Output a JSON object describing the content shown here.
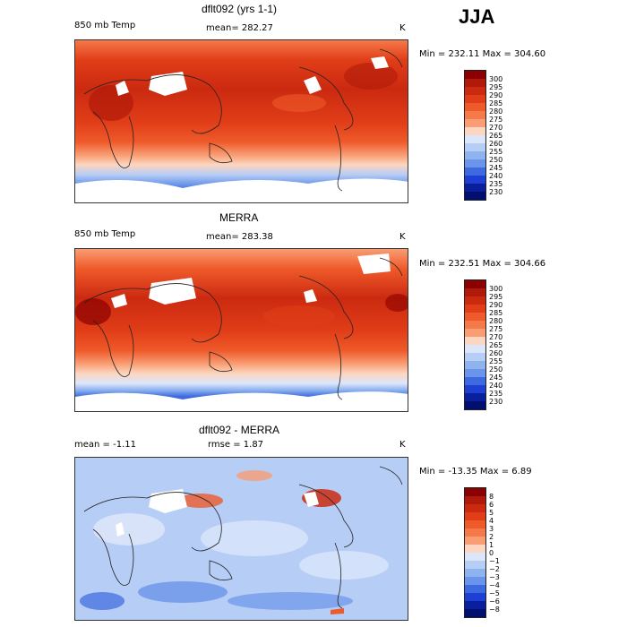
{
  "season": "JJA",
  "units": "K",
  "panels": [
    {
      "title": "dflt092 (yrs 1-1)",
      "left_label": "850 mb Temp",
      "center_label": "mean= 282.27",
      "right_label": "K",
      "minmax": "Min = 232.11  Max = 304.60",
      "colorbar_levels": [
        "300",
        "295",
        "290",
        "285",
        "280",
        "275",
        "270",
        "265",
        "260",
        "255",
        "250",
        "245",
        "240",
        "235",
        "230"
      ],
      "colorbar_colors": [
        "#8b0000",
        "#b01a0a",
        "#cc2a10",
        "#e03d18",
        "#ef5a2a",
        "#f6794a",
        "#f99d74",
        "#fcd6c0",
        "#dbe6fb",
        "#b6cdf5",
        "#8fb3ef",
        "#6b95ea",
        "#3d6ae0",
        "#1d3fd4",
        "#0a1f9c",
        "#000f70"
      ]
    },
    {
      "title": "MERRA",
      "left_label": "850 mb Temp",
      "center_label": "mean= 283.38",
      "right_label": "K",
      "minmax": "Min = 232.51  Max = 304.66",
      "colorbar_levels": [
        "300",
        "295",
        "290",
        "285",
        "280",
        "275",
        "270",
        "265",
        "260",
        "255",
        "250",
        "245",
        "240",
        "235",
        "230"
      ],
      "colorbar_colors": [
        "#8b0000",
        "#b01a0a",
        "#cc2a10",
        "#e03d18",
        "#ef5a2a",
        "#f6794a",
        "#f99d74",
        "#fcd6c0",
        "#dbe6fb",
        "#b6cdf5",
        "#8fb3ef",
        "#6b95ea",
        "#3d6ae0",
        "#1d3fd4",
        "#0a1f9c",
        "#000f70"
      ]
    },
    {
      "title": "dflt092 - MERRA",
      "left_label": "mean =   -1.11",
      "center_label": "rmse =    1.87",
      "right_label": "K",
      "minmax": "Min = -13.35  Max =    6.89",
      "colorbar_levels": [
        "8",
        "6",
        "5",
        "4",
        "3",
        "2",
        "1",
        "0",
        "−1",
        "−2",
        "−3",
        "−4",
        "−5",
        "−6",
        "−8"
      ],
      "colorbar_colors": [
        "#8b0000",
        "#b01a0a",
        "#cc2a10",
        "#e03d18",
        "#ef5a2a",
        "#f6794a",
        "#f99d74",
        "#fcd6c0",
        "#dbe6fb",
        "#b6cdf5",
        "#8fb3ef",
        "#6b95ea",
        "#3d6ae0",
        "#1d3fd4",
        "#0a1f9c",
        "#000f70"
      ]
    }
  ]
}
